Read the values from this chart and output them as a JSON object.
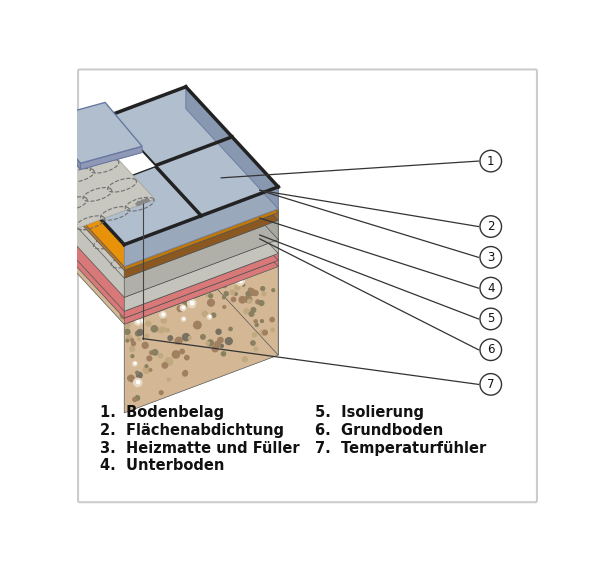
{
  "bg_color": "#ffffff",
  "border_color": "#cccccc",
  "labels_left": [
    "1.  Bodenbelag",
    "2.  Flächenabdichtung",
    "3.  Heizmatte und Füller",
    "4.  Unterboden"
  ],
  "labels_right": [
    "5.  Isolierung",
    "6.  Grundboden",
    "7.  Temperaturfühler"
  ],
  "label_fontsize": 10.5,
  "label_color": "#111111",
  "tile_color_top": "#b0bece",
  "tile_color_side": "#8898b0",
  "tile_color_front": "#9aa8bc",
  "tile_grout": "#222222",
  "layer2_top": "#e8940a",
  "layer2_side": "#c07808",
  "layer2_front": "#d08808",
  "layer3_top": "#c8a060",
  "layer3_side": "#a07840",
  "layer3_front": "#b08848",
  "layer4_top": "#c0c0b8",
  "layer4_side": "#909090",
  "layer4_front": "#a8a8a0",
  "layer5_top": "#d87878",
  "layer5_side": "#b05050",
  "layer5_front": "#c06060",
  "layer6_top": "#c0c0b0",
  "layer6_side": "#909088",
  "layer6_front": "#a8a8a0",
  "ground_color": "#d4b896",
  "ground_dot_color": "#a08060",
  "ground_dot_light": "#e8d0b0",
  "mat_line_color": "#707070",
  "sensor_color": "#e0e0e0",
  "callout_line_color": "#333333",
  "callout_circle_bg": "#ffffff",
  "callout_circle_edge": "#333333"
}
